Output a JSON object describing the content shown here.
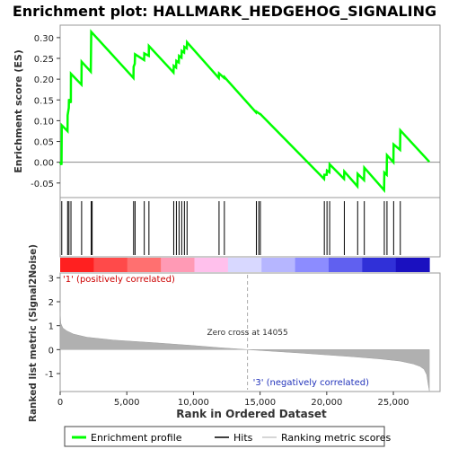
{
  "chart_data": {
    "type": "line",
    "title": "Enrichment plot: HALLMARK_HEDGEHOG_SIGNALING",
    "top_panel": {
      "ylabel": "Enrichment score (ES)",
      "ylim": [
        -0.085,
        0.33
      ],
      "yticks": [
        -0.05,
        0.0,
        0.05,
        0.1,
        0.15,
        0.2,
        0.25,
        0.3
      ],
      "ytick_labels": [
        "-0.05",
        "0.00",
        "0.05",
        "0.10",
        "0.15",
        "0.20",
        "0.25",
        "0.30"
      ],
      "series": [
        {
          "name": "Enrichment profile",
          "color": "#00ff00",
          "x": [
            0,
            100,
            120,
            550,
            560,
            650,
            660,
            800,
            810,
            1600,
            1610,
            2300,
            2330,
            5500,
            5510,
            5600,
            5620,
            6300,
            6310,
            6650,
            6660,
            8500,
            8520,
            8700,
            8720,
            8900,
            8920,
            9100,
            9120,
            9300,
            9320,
            9500,
            9520,
            11900,
            11920,
            12300,
            12320,
            14700,
            14720,
            15000,
            15020,
            19800,
            19820,
            20000,
            20020,
            20200,
            20220,
            21300,
            21320,
            22300,
            22320,
            22800,
            22820,
            24300,
            24320,
            24500,
            24520,
            25000,
            25020,
            25500,
            25520,
            27700
          ],
          "y": [
            0.0,
            -0.006,
            0.089,
            0.075,
            0.113,
            0.131,
            0.152,
            0.143,
            0.213,
            0.187,
            0.242,
            0.218,
            0.314,
            0.203,
            0.23,
            0.237,
            0.26,
            0.246,
            0.262,
            0.256,
            0.28,
            0.216,
            0.232,
            0.228,
            0.244,
            0.24,
            0.256,
            0.252,
            0.268,
            0.264,
            0.278,
            0.274,
            0.289,
            0.203,
            0.214,
            0.203,
            0.205,
            0.12,
            0.122,
            0.116,
            0.116,
            -0.04,
            -0.03,
            -0.03,
            -0.02,
            -0.024,
            -0.005,
            -0.04,
            -0.022,
            -0.058,
            -0.028,
            -0.043,
            -0.013,
            -0.067,
            -0.025,
            -0.03,
            0.017,
            0.0,
            0.043,
            0.03,
            0.077,
            0.001
          ]
        }
      ],
      "baseline": 0.0
    },
    "hits": {
      "name": "Hits",
      "positions": [
        120,
        560,
        660,
        810,
        1610,
        2330,
        2400,
        5510,
        5620,
        6310,
        6660,
        8520,
        8720,
        8920,
        9120,
        9320,
        9520,
        11920,
        12320,
        14720,
        14900,
        15020,
        19820,
        20020,
        20220,
        21320,
        22320,
        22820,
        24320,
        24520,
        25020,
        25520
      ]
    },
    "ranked_bar": {
      "segments": [
        "#ff2020",
        "#ff4a4a",
        "#ff7070",
        "#ff9ab5",
        "#ffc0ec",
        "#d8d8ff",
        "#b6b6ff",
        "#8c8cff",
        "#6060f0",
        "#3030d8",
        "#1a10c0"
      ]
    },
    "bottom_panel": {
      "ylabel": "Ranked list metric (Signal2Noise)",
      "ylim": [
        -1.75,
        3.2
      ],
      "yticks": [
        -1,
        0,
        1,
        2,
        3
      ],
      "ytick_labels": [
        "-1",
        "0",
        "1",
        "2",
        "3"
      ],
      "series": [
        {
          "name": "Ranking metric scores",
          "color": "#b0b0b0",
          "x": [
            0,
            50,
            200,
            500,
            1000,
            2000,
            4000,
            7000,
            10000,
            12000,
            14055,
            16000,
            18000,
            20000,
            22000,
            24000,
            25500,
            26500,
            27000,
            27300,
            27500,
            27600,
            27700
          ],
          "y": [
            1.6,
            1.1,
            0.9,
            0.78,
            0.65,
            0.52,
            0.4,
            0.29,
            0.17,
            0.08,
            0.0,
            -0.07,
            -0.14,
            -0.22,
            -0.3,
            -0.39,
            -0.48,
            -0.6,
            -0.7,
            -0.82,
            -1.05,
            -1.4,
            -1.72
          ]
        }
      ],
      "zero_cross": 14055,
      "annotations": {
        "positive": "'1' (positively correlated)",
        "negative": "'3' (negatively correlated)",
        "zero_cross": "Zero cross at 14055"
      }
    },
    "xaxis": {
      "xlabel": "Rank in Ordered Dataset",
      "xlim": [
        0,
        28500
      ],
      "xticks": [
        0,
        5000,
        10000,
        15000,
        20000,
        25000
      ],
      "xtick_labels": [
        "0",
        "5,000",
        "10,000",
        "15,000",
        "20,000",
        "25,000"
      ]
    },
    "legend": {
      "placement": "bottom",
      "items": [
        "Enrichment profile",
        "Hits",
        "Ranking metric scores"
      ]
    }
  }
}
